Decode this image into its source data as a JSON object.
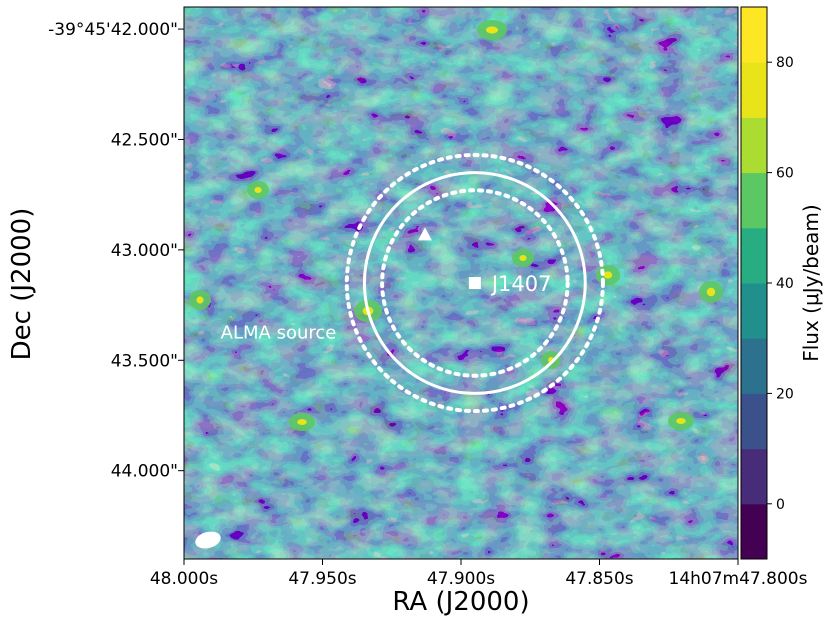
{
  "chart_data": {
    "type": "heatmap",
    "xlabel": "RA (J2000)",
    "ylabel": "Dec (J2000)",
    "x_ticks": [
      "48.000s",
      "47.950s",
      "47.900s",
      "47.850s",
      "14h07m47.800s"
    ],
    "x_tick_values": [
      48.0,
      47.95,
      47.9,
      47.85,
      47.8
    ],
    "y_ticks": [
      "-39°45'42.000\"",
      "42.500\"",
      "43.000\"",
      "43.500\"",
      "44.000\""
    ],
    "y_tick_values": [
      42.0,
      42.5,
      43.0,
      43.5,
      44.0
    ],
    "xlim": [
      48.0,
      47.8
    ],
    "ylim": [
      44.4,
      41.9
    ],
    "colorbar": {
      "label": "Flux (μJy/beam)",
      "ticks": [
        "0",
        "20",
        "40",
        "60",
        "80"
      ],
      "tick_values": [
        0,
        20,
        40,
        60,
        80
      ],
      "range": [
        -10,
        90
      ],
      "levels": [
        -10,
        0,
        10,
        20,
        30,
        40,
        50,
        60,
        70,
        80,
        90
      ],
      "colors": [
        "#440154",
        "#472c7a",
        "#3b518b",
        "#2c718e",
        "#21908d",
        "#27ad81",
        "#5cc863",
        "#aadc32",
        "#e8e419",
        "#fde725"
      ]
    },
    "annotations": {
      "target_label": "J1407",
      "target_position": {
        "ra_s": 47.895,
        "dec_arcsec": 43.15
      },
      "alma_label": "ALMA source",
      "alma_position": {
        "ra_s": 47.932,
        "dec_arcsec": 43.28
      },
      "triangle_position": {
        "ra_s": 47.913,
        "dec_arcsec": 42.93
      },
      "circle_center": {
        "ra_s": 47.895,
        "dec_arcsec": 43.15
      },
      "circle_radius_arcsec": 0.5,
      "inner_dotted_radius_arcsec": 0.42,
      "outer_dotted_radius_arcsec": 0.58
    },
    "grid": false
  }
}
